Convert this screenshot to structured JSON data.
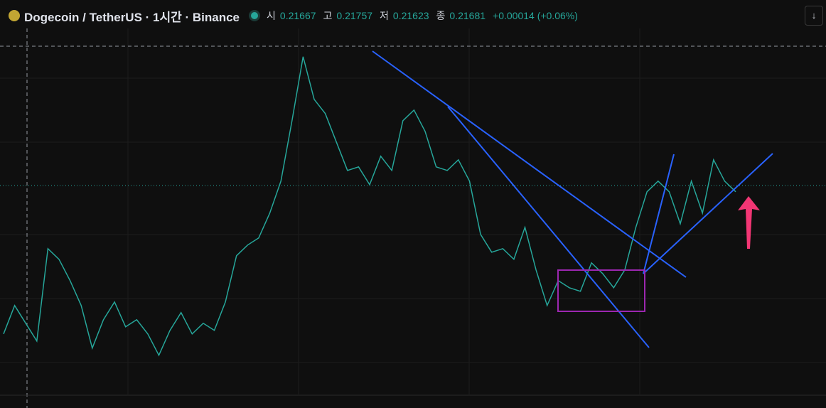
{
  "header": {
    "symbol": "Dogecoin / TetherUS · 1시간 · Binance",
    "open_label": "시",
    "open": "0.21667",
    "high_label": "고",
    "high": "0.21757",
    "low_label": "저",
    "low": "0.21623",
    "close_label": "종",
    "close": "0.21681",
    "change": "+0.00014 (+0.06%)"
  },
  "chart_data": {
    "type": "line",
    "color": "#26a69a",
    "values": [
      0.19172,
      0.19652,
      0.19352,
      0.19052,
      0.20612,
      0.20432,
      0.20072,
      0.19652,
      0.18932,
      0.19412,
      0.19712,
      0.19292,
      0.19412,
      0.19172,
      0.18812,
      0.19232,
      0.19532,
      0.19172,
      0.19352,
      0.19232,
      0.19712,
      0.20492,
      0.20672,
      0.20792,
      0.21212,
      0.21752,
      0.22772,
      0.23852,
      0.23132,
      0.22892,
      0.22412,
      0.21932,
      0.21992,
      0.21692,
      0.22172,
      0.21932,
      0.22772,
      0.22952,
      0.22592,
      0.21992,
      0.21932,
      0.22112,
      0.21752,
      0.20852,
      0.20552,
      0.20612,
      0.20432,
      0.20972,
      0.20252,
      0.19652,
      0.20072,
      0.19952,
      0.19892,
      0.20372,
      0.20192,
      0.19952,
      0.20252,
      0.20972,
      0.21572,
      0.21752,
      0.21572,
      0.21032,
      0.21752,
      0.21212,
      0.22112,
      0.21752,
      0.21572
    ],
    "ylim": [
      0.1815,
      0.2433
    ]
  }
}
